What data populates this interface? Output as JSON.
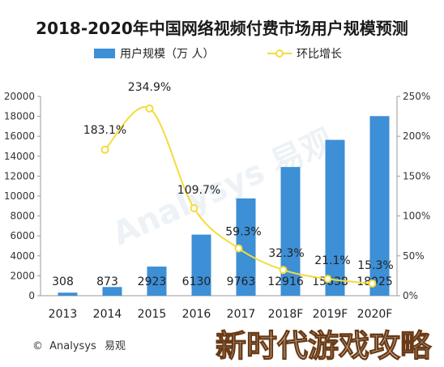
{
  "title": "2018-2020年中国网络视频付费市场用户规模预测",
  "legend": {
    "bar_label": "用户规模（万 人）",
    "line_label": "环比增长"
  },
  "footer": {
    "copyright_symbol": "©",
    "source": "Analysys",
    "brand_cn": "易观"
  },
  "background_watermark": "Analysys 易观",
  "watermark": "新时代游戏攻略",
  "colors": {
    "bar": "#3d8fd6",
    "line": "#f3dc3d",
    "marker_fill": "#ffffff",
    "axis": "#9a9a9a",
    "watermark_stroke": "#6a3b16"
  },
  "chart_data": {
    "type": "bar",
    "categories": [
      "2013",
      "2014",
      "2015",
      "2016",
      "2017",
      "2018F",
      "2019F",
      "2020F"
    ],
    "series": [
      {
        "name": "用户规模（万 人）",
        "type": "bar",
        "axis": "left",
        "values": [
          308,
          873,
          2923,
          6130,
          9763,
          12916,
          15638,
          18025
        ],
        "value_labels": [
          "308",
          "873",
          "2923",
          "6130",
          "9763",
          "12916",
          "15638",
          "18025"
        ]
      },
      {
        "name": "环比增长",
        "type": "line",
        "axis": "right",
        "values": [
          null,
          183.1,
          234.9,
          109.7,
          59.3,
          32.3,
          21.1,
          15.3
        ],
        "value_labels": [
          "",
          "183.1%",
          "234.9%",
          "109.7%",
          "59.3%",
          "32.3%",
          "21.1%",
          "15.3%"
        ]
      }
    ],
    "y_left": {
      "range": [
        0,
        20000
      ],
      "ticks": [
        "0",
        "2000",
        "4000",
        "6000",
        "8000",
        "10000",
        "12000",
        "14000",
        "16000",
        "18000",
        "20000"
      ]
    },
    "y_right": {
      "range": [
        0,
        250
      ],
      "ticks": [
        "0%",
        "50%",
        "100%",
        "150%",
        "200%",
        "250%"
      ]
    },
    "grid": false,
    "legend_position": "top"
  }
}
